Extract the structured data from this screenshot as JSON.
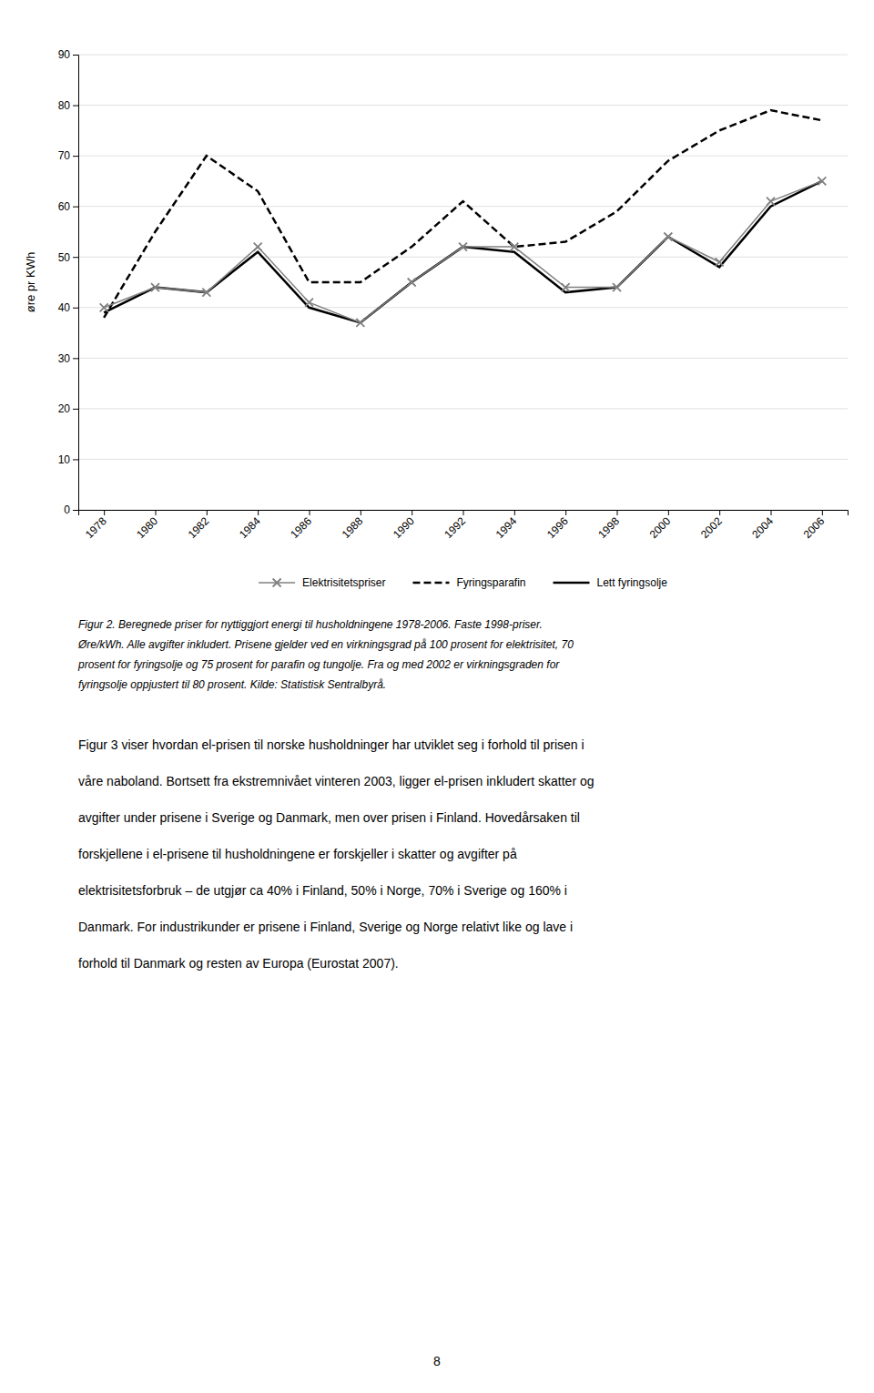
{
  "chart_data": {
    "type": "line",
    "y_label": "øre pr KWh",
    "x": [
      1978,
      1980,
      1982,
      1984,
      1986,
      1988,
      1990,
      1992,
      1994,
      1996,
      1998,
      2000,
      2002,
      2004,
      2006
    ],
    "series": [
      {
        "name": "Elektrisitetspriser",
        "color": "#808080",
        "line_style": "solid",
        "marker": "x",
        "values": [
          40,
          44,
          43,
          52,
          41,
          37,
          45,
          52,
          52,
          44,
          44,
          54,
          49,
          61,
          65
        ]
      },
      {
        "name": "Fyringsparafin",
        "color": "#000000",
        "line_style": "dashed",
        "marker": "none",
        "values": [
          38,
          55,
          70,
          63,
          45,
          45,
          52,
          61,
          52,
          53,
          59,
          69,
          75,
          79,
          77
        ]
      },
      {
        "name": "Lett fyringsolje",
        "color": "#000000",
        "line_style": "solid",
        "marker": "none",
        "values": [
          39,
          44,
          43,
          51,
          40,
          37,
          45,
          52,
          51,
          43,
          44,
          54,
          48,
          60,
          65
        ]
      }
    ],
    "xlim": [
      1977,
      2007
    ],
    "xticks": [
      1978,
      1980,
      1982,
      1984,
      1986,
      1988,
      1990,
      1992,
      1994,
      1996,
      1998,
      2000,
      2002,
      2004,
      2006
    ],
    "ylim": [
      0,
      90
    ],
    "yticks": [
      0,
      10,
      20,
      30,
      40,
      50,
      60,
      70,
      80,
      90
    ],
    "grid": true,
    "legend": "bottom"
  },
  "caption": [
    "Figur 2. Beregnede priser for nyttiggjort energi til husholdningene 1978-2006. Faste 1998-priser.",
    "Øre/kWh. Alle avgifter inkludert. Prisene gjelder ved en virkningsgrad på 100 prosent for elektrisitet, 70",
    "prosent for fyringsolje og 75 prosent for parafin og tungolje. Fra og med 2002 er virkningsgraden for",
    "fyringsolje oppjustert til 80 prosent. Kilde: Statistisk Sentralbyrå."
  ],
  "body_text": [
    "Figur 3 viser hvordan el-prisen til norske husholdninger har utviklet seg i forhold til prisen i",
    "våre naboland. Bortsett fra ekstremnivået vinteren 2003, ligger el-prisen inkludert skatter og",
    "avgifter under prisene i Sverige og Danmark, men over prisen i Finland. Hovedårsaken til",
    "forskjellene i el-prisene til husholdningene er forskjeller i skatter og avgifter på",
    "elektrisitetsforbruk – de utgjør ca 40% i Finland, 50% i Norge, 70% i Sverige og 160% i",
    "Danmark. For industrikunder er prisene i Finland, Sverige og Norge relativt like og lave i",
    "forhold til Danmark og resten av Europa (Eurostat 2007)."
  ],
  "page_number": "8"
}
